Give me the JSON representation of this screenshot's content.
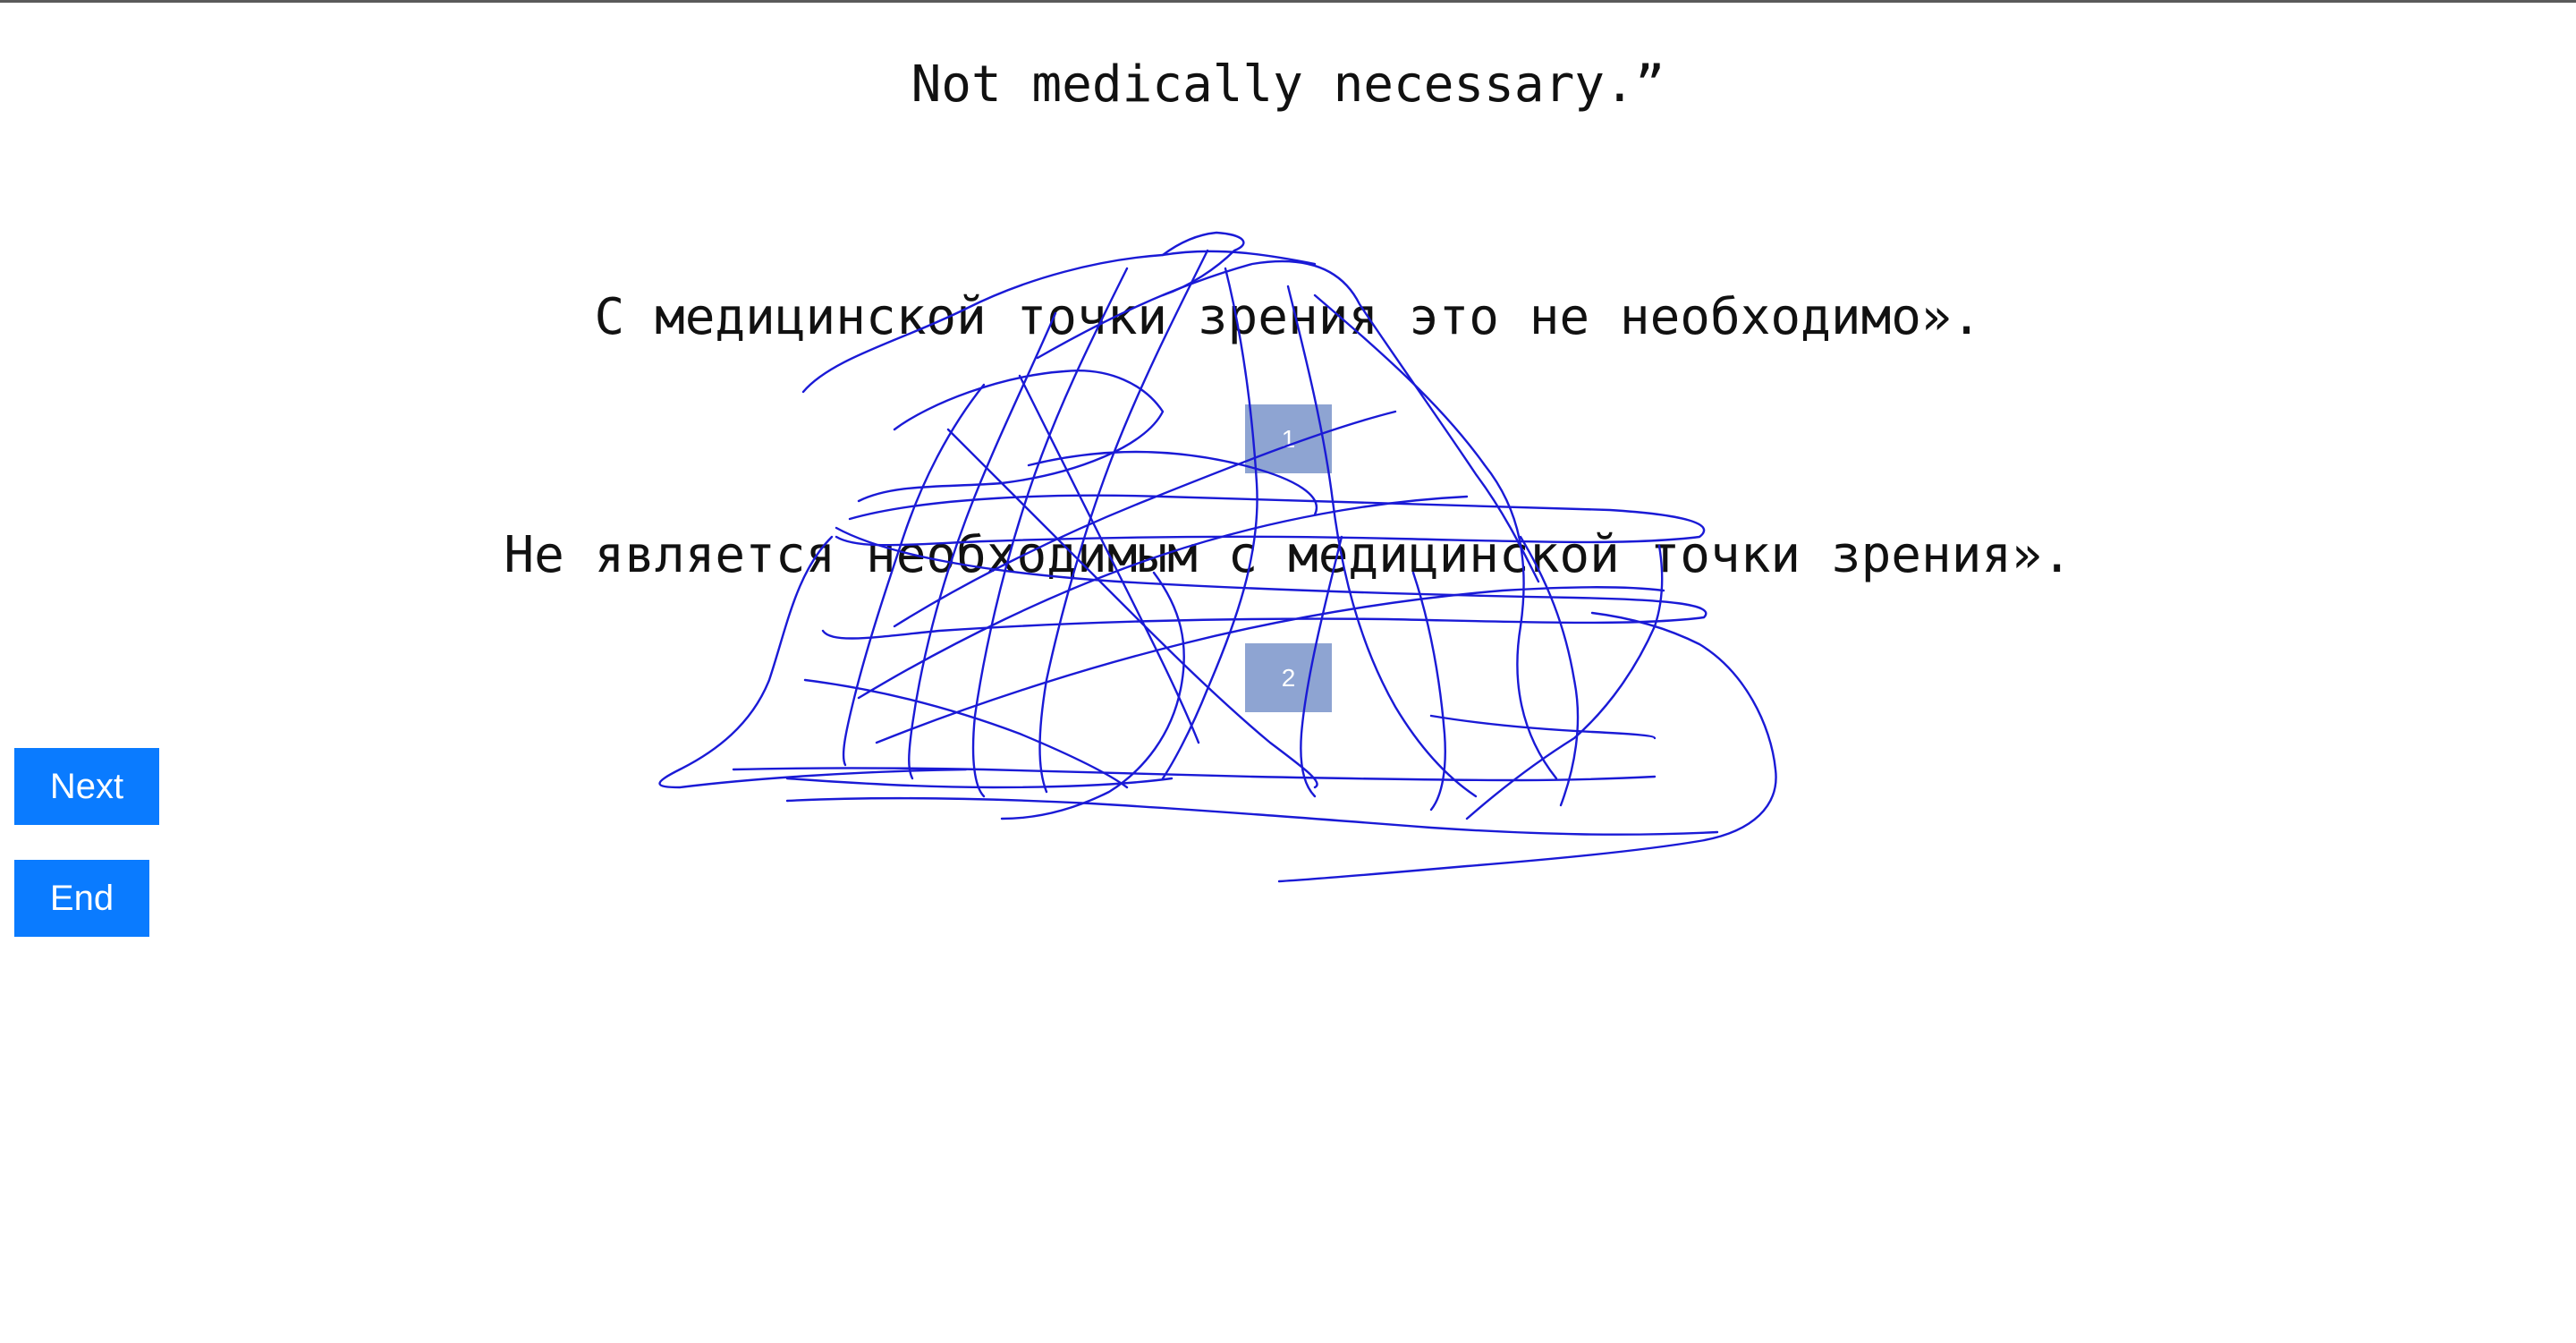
{
  "source_sentence": "Not medically necessary.”",
  "candidates": [
    {
      "text": "С медицинской точки зрения это не необходимо».",
      "badge": "1"
    },
    {
      "text": "Не является необходимым с медицинской точки зрения».",
      "badge": "2"
    }
  ],
  "buttons": {
    "next_label": "Next",
    "end_label": "End"
  },
  "colors": {
    "button_bg": "#0a7bff",
    "badge_bg": "#8ea4d2",
    "scribble_stroke": "#1a1ad6"
  }
}
